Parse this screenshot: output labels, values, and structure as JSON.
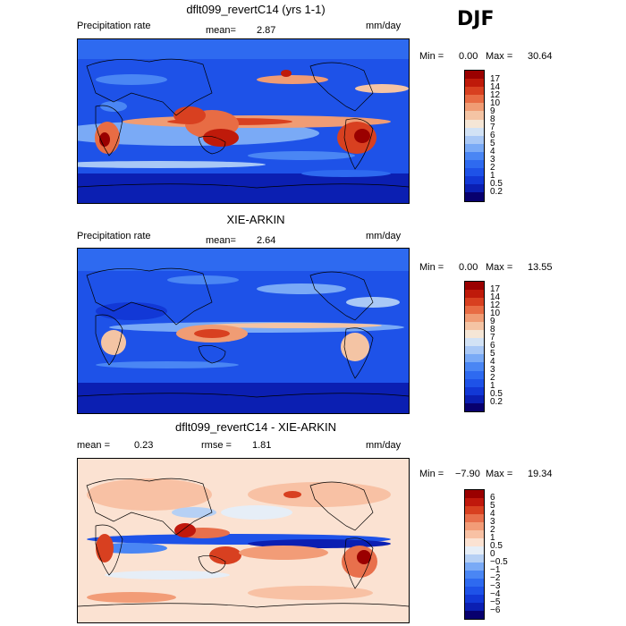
{
  "season": "DJF",
  "palette": {
    "precip": [
      "#08006e",
      "#0b1fb2",
      "#1238d6",
      "#1e52e8",
      "#2e6af0",
      "#4a86f4",
      "#7aaaf6",
      "#a9c8f6",
      "#d2e2f5",
      "#f5e6d6",
      "#f4c4a4",
      "#f09c74",
      "#e86c44",
      "#d84020",
      "#bf1a0a",
      "#9a0000"
    ],
    "diff": [
      "#08006e",
      "#0b1fb2",
      "#1238d6",
      "#1e52e8",
      "#2e6af0",
      "#4a86f4",
      "#7aaaf6",
      "#b6d0f4",
      "#e6eef7",
      "#fbe2d2",
      "#f8c1a4",
      "#f29c77",
      "#e8704c",
      "#d84020",
      "#c0180c",
      "#9a0000"
    ]
  },
  "panels": [
    {
      "title": "dflt099_revertC14 (yrs 1-1)",
      "left_label": "Precipitation rate",
      "stat1": "mean=",
      "stat1_value": "2.87",
      "stat2": "",
      "stat2_value": "",
      "units": "mm/day",
      "min_label": "Min =",
      "min_value": "0.00",
      "max_label": "Max =",
      "max_value": "30.64",
      "colorbar_labels": [
        "17",
        "14",
        "12",
        "10",
        "9",
        "8",
        "7",
        "6",
        "5",
        "4",
        "3",
        "2",
        "1",
        "0.5",
        "0.2"
      ]
    },
    {
      "title": "XIE-ARKIN",
      "left_label": "Precipitation rate",
      "stat1": "mean=",
      "stat1_value": "2.64",
      "stat2": "",
      "stat2_value": "",
      "units": "mm/day",
      "min_label": "Min =",
      "min_value": "0.00",
      "max_label": "Max =",
      "max_value": "13.55",
      "colorbar_labels": [
        "17",
        "14",
        "12",
        "10",
        "9",
        "8",
        "7",
        "6",
        "5",
        "4",
        "3",
        "2",
        "1",
        "0.5",
        "0.2"
      ]
    },
    {
      "title": "dflt099_revertC14 - XIE-ARKIN",
      "left_label": "",
      "stat1": "mean =",
      "stat1_value": "0.23",
      "stat2": "rmse =",
      "stat2_value": "1.81",
      "units": "mm/day",
      "min_label": "Min =",
      "min_value": "−7.90",
      "max_label": "Max =",
      "max_value": "19.34",
      "colorbar_labels": [
        "6",
        "5",
        "4",
        "3",
        "2",
        "1",
        "0.5",
        "0",
        "−0.5",
        "−1",
        "−2",
        "−3",
        "−4",
        "−5",
        "−6"
      ]
    }
  ]
}
